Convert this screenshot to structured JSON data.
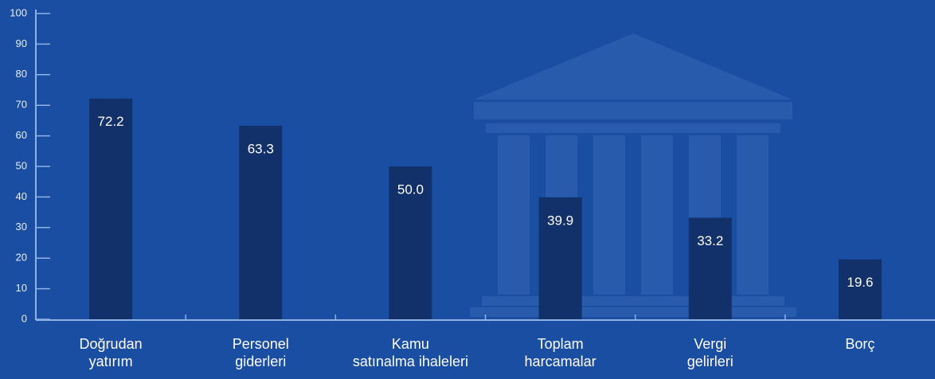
{
  "chart_data": {
    "type": "bar",
    "categories": [
      "Doğrudan\nyatırım",
      "Personel\ngiderleri",
      "Kamu\nsatınalma ihaleleri",
      "Toplam\nharcamalar",
      "Vergi\ngelirleri",
      "Borç"
    ],
    "values": [
      72.2,
      63.3,
      50,
      39.9,
      33.2,
      19.6
    ],
    "value_labels": [
      "72.2",
      "63.3",
      "50.0",
      "39.9",
      "33.2",
      "19.6"
    ],
    "color": "#12306a",
    "ylim": [
      0,
      100
    ],
    "yticks": [
      0,
      10,
      20,
      30,
      40,
      50,
      60,
      70,
      80,
      90,
      100
    ],
    "grid": false
  }
}
